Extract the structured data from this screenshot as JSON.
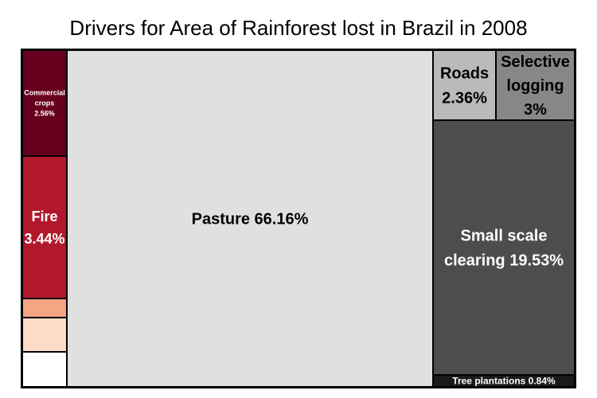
{
  "chart_data": {
    "type": "treemap",
    "title": "Drivers for Area of Rainforest lost in Brazil in 2008",
    "labels": [
      {
        "name": "Commercial crops",
        "value": "2.56%",
        "color": "#67001f"
      },
      {
        "name": "Fire",
        "value": "3.44%",
        "color": "#b2182b"
      },
      {
        "name": "",
        "value": "",
        "color": "#f4a582"
      },
      {
        "name": "",
        "value": "",
        "color": "#fddbc7"
      },
      {
        "name": "",
        "value": "",
        "color": "#ffffff"
      },
      {
        "name": "Pasture",
        "value": "66.16%",
        "color": "#e0e0e0"
      },
      {
        "name": "Roads",
        "value": "2.36%",
        "color": "#bababa"
      },
      {
        "name": "Selective logging",
        "value": "3%",
        "color": "#878787"
      },
      {
        "name": "Small scale clearing",
        "value": "19.53%",
        "color": "#4d4d4d"
      },
      {
        "name": "Tree plantations",
        "value": "0.84%",
        "color": "#1a1a1a"
      }
    ]
  }
}
